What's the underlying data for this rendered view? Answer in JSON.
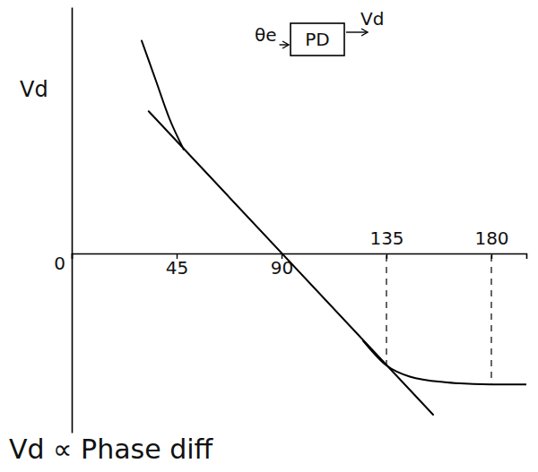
{
  "chart_data": {
    "type": "line",
    "ylabel": "Vd",
    "annotations": [
      "θe",
      "PD",
      "Vd",
      "Vd ∝ Phase diff"
    ],
    "series": [
      {
        "x": [
          33,
          155
        ],
        "values": [
          1.27,
          -1.44
        ],
        "color": "#000000",
        "line_style": "solid"
      },
      {
        "x": [
          30,
          36,
          42,
          48,
          90,
          125,
          135,
          145,
          160,
          180,
          195
        ],
        "values": [
          1.9,
          1.55,
          1.2,
          0.93,
          null,
          -0.78,
          -1.0,
          -1.1,
          -1.15,
          -1.17,
          -1.17
        ],
        "color": "#000000",
        "line_style": "solid"
      }
    ],
    "xlim": [
      0,
      195
    ],
    "ylim": [
      -1.6,
      2.2
    ],
    "xticks": [
      0,
      45,
      90,
      135,
      180
    ],
    "yticks": [],
    "tick_labels": "x",
    "grid": false
  }
}
